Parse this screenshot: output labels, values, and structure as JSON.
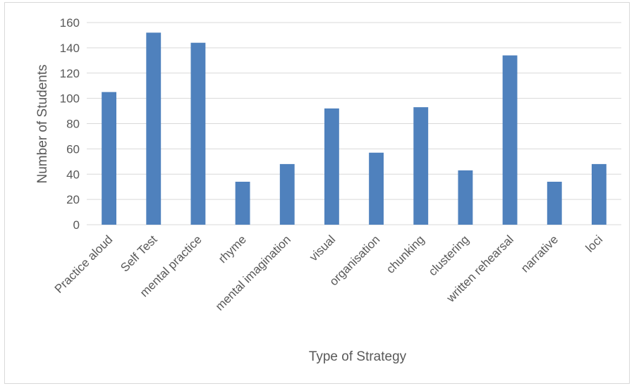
{
  "chart_data": {
    "type": "bar",
    "title": "",
    "xlabel": "Type of Strategy",
    "ylabel": "Number of Students",
    "categories": [
      "Practice aloud",
      "Self Test",
      "mental practice",
      "rhyme",
      "mental imagination",
      "visual",
      "organisation",
      "chunking",
      "clustering",
      "written rehearsal",
      "narrative",
      "loci"
    ],
    "values": [
      105,
      152,
      144,
      34,
      48,
      92,
      57,
      93,
      43,
      134,
      34,
      48
    ],
    "ylim": [
      0,
      160
    ],
    "yticks": [
      "0",
      "20",
      "40",
      "60",
      "80",
      "100",
      "120",
      "140",
      "160"
    ],
    "grid": true,
    "bar_color": "#4f81bd",
    "legend": "none"
  }
}
